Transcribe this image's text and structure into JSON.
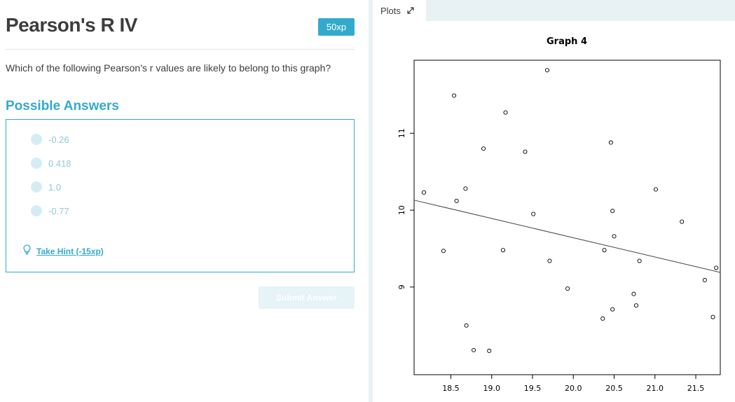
{
  "exercise": {
    "title": "Pearson's R IV",
    "xp_badge": "50xp",
    "question": "Which of the following Pearson's r values are likely to belong to this graph?",
    "answers_heading": "Possible Answers",
    "options": [
      "-0.26",
      "0.418",
      "1.0",
      "-0.77"
    ],
    "hint_label": "Take Hint (-15xp)",
    "submit_label": "Submit Answer"
  },
  "plots_panel": {
    "tab_label": "Plots",
    "expand_icon": "expand-arrows-icon"
  },
  "colors": {
    "accent": "#33aacc",
    "option_text": "#8ec9dd",
    "radio_fill": "#d4edf5",
    "submit_disabled": "#e6f3f7",
    "panel_bg": "#e8f1f4"
  },
  "chart_data": {
    "type": "scatter",
    "title": "Graph 4",
    "xlabel": "",
    "ylabel": "",
    "xlim": [
      18.05,
      21.8
    ],
    "ylim": [
      7.86,
      11.95
    ],
    "x_ticks": [
      18.5,
      19.0,
      19.5,
      20.0,
      20.5,
      21.0,
      21.5
    ],
    "x_tick_labels": [
      "18.5",
      "19.0",
      "19.5",
      "20.0",
      "20.5",
      "21.0",
      "21.5"
    ],
    "y_ticks": [
      9,
      10,
      11
    ],
    "y_tick_labels": [
      "9",
      "10",
      "11"
    ],
    "grid": false,
    "points": [
      [
        18.17,
        10.23
      ],
      [
        18.41,
        9.47
      ],
      [
        18.54,
        11.49
      ],
      [
        18.57,
        10.12
      ],
      [
        18.68,
        10.28
      ],
      [
        18.69,
        8.5
      ],
      [
        18.78,
        8.18
      ],
      [
        18.9,
        10.8
      ],
      [
        18.97,
        8.17
      ],
      [
        19.14,
        9.48
      ],
      [
        19.17,
        11.27
      ],
      [
        19.41,
        10.76
      ],
      [
        19.51,
        9.95
      ],
      [
        19.68,
        11.82
      ],
      [
        19.71,
        9.34
      ],
      [
        19.93,
        8.98
      ],
      [
        20.36,
        8.59
      ],
      [
        20.38,
        9.48
      ],
      [
        20.46,
        10.88
      ],
      [
        20.48,
        8.71
      ],
      [
        20.48,
        9.99
      ],
      [
        20.5,
        9.66
      ],
      [
        20.74,
        8.91
      ],
      [
        20.77,
        8.76
      ],
      [
        20.81,
        9.34
      ],
      [
        21.01,
        10.27
      ],
      [
        21.33,
        9.85
      ],
      [
        21.61,
        9.09
      ],
      [
        21.71,
        8.61
      ],
      [
        21.75,
        9.25
      ]
    ],
    "regression_line": {
      "x": [
        18.05,
        21.8
      ],
      "y": [
        10.13,
        9.19
      ]
    }
  }
}
